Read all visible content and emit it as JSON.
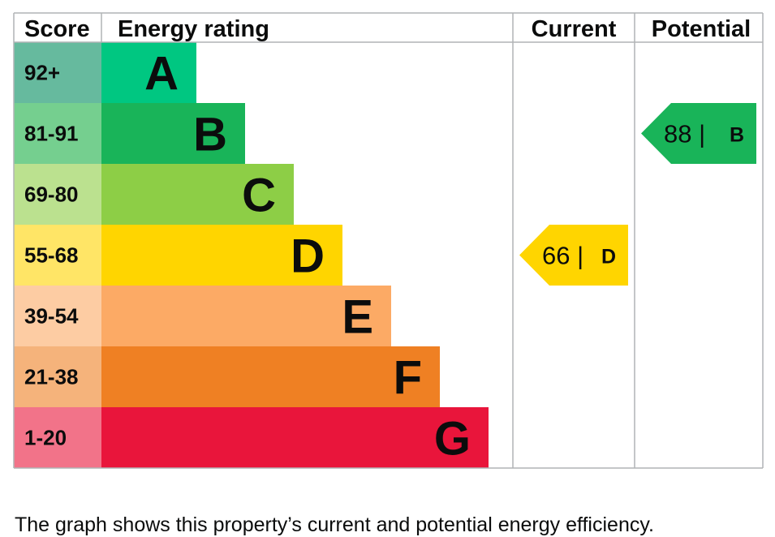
{
  "chart_data": {
    "type": "table",
    "headers": {
      "score": "Score",
      "energy_rating": "Energy rating",
      "current": "Current",
      "potential": "Potential"
    },
    "bands": [
      {
        "score": "92+",
        "letter": "A",
        "color": "#00c781",
        "score_bg": "#66ba9e"
      },
      {
        "score": "81-91",
        "letter": "B",
        "color": "#19b459",
        "score_bg": "#75cf8f"
      },
      {
        "score": "69-80",
        "letter": "C",
        "color": "#8dce46",
        "score_bg": "#bbe18f"
      },
      {
        "score": "55-68",
        "letter": "D",
        "color": "#ffd500",
        "score_bg": "#ffe566"
      },
      {
        "score": "39-54",
        "letter": "E",
        "color": "#fcaa65",
        "score_bg": "#fdcca3"
      },
      {
        "score": "21-38",
        "letter": "F",
        "color": "#ef8023",
        "score_bg": "#f5b37b"
      },
      {
        "score": "1-20",
        "letter": "G",
        "color": "#e9153b",
        "score_bg": "#f27389"
      }
    ],
    "current": {
      "value": "66",
      "letter": "D",
      "color": "#ffd500"
    },
    "potential": {
      "value": "88",
      "letter": "B",
      "color": "#19b459"
    }
  },
  "caption": "The graph shows this property’s current and potential energy efficiency."
}
